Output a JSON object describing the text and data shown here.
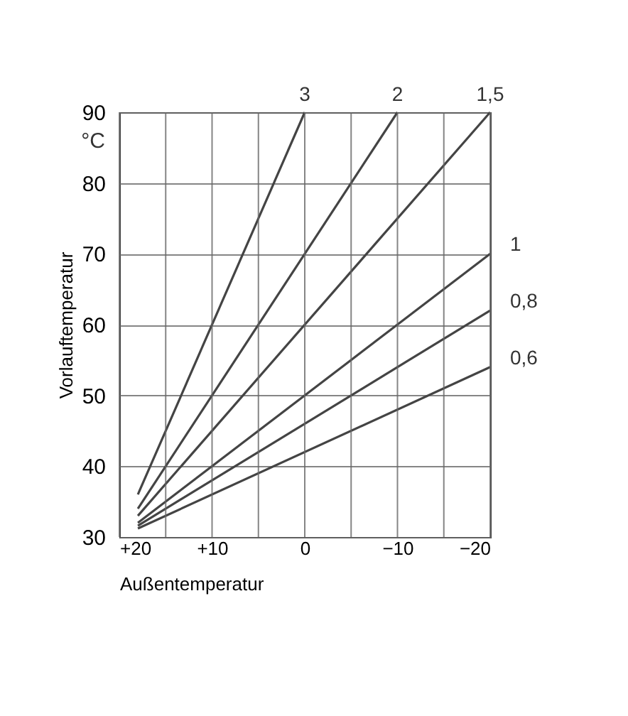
{
  "chart_data": {
    "type": "line",
    "xlabel": "Außentemperatur",
    "ylabel": "Vorlauftemperatur",
    "annotations": [
      "°C"
    ],
    "series": [
      {
        "name": "3",
        "color": "#444444",
        "x": [
          18,
          0
        ],
        "values": [
          36,
          90
        ]
      },
      {
        "name": "2",
        "color": "#444444",
        "x": [
          18,
          -10
        ],
        "values": [
          34,
          90
        ]
      },
      {
        "name": "1,5",
        "color": "#444444",
        "x": [
          18,
          -20
        ],
        "values": [
          33,
          90
        ]
      },
      {
        "name": "1",
        "color": "#444444",
        "x": [
          18,
          -20
        ],
        "values": [
          32,
          70
        ]
      },
      {
        "name": "0,8",
        "color": "#444444",
        "x": [
          18,
          -20
        ],
        "values": [
          31.6,
          62
        ]
      },
      {
        "name": "0,6",
        "color": "#444444",
        "x": [
          18,
          -20
        ],
        "values": [
          31.2,
          54
        ]
      }
    ],
    "xlim": [
      20,
      -20
    ],
    "xticks": [
      {
        "value": 20,
        "label": "+20"
      },
      {
        "value": 15,
        "label": null
      },
      {
        "value": 10,
        "label": "+10"
      },
      {
        "value": 5,
        "label": null
      },
      0,
      {
        "value": -5,
        "label": null
      },
      {
        "value": -10,
        "label": "−10"
      },
      {
        "value": -15,
        "label": null
      },
      {
        "value": -20,
        "label": "−20"
      }
    ],
    "ylim": [
      30,
      90
    ],
    "yticks": [
      30,
      40,
      50,
      60,
      70,
      80,
      90
    ],
    "grid": true,
    "legend": false,
    "marker": "none",
    "line_style": "solid"
  }
}
